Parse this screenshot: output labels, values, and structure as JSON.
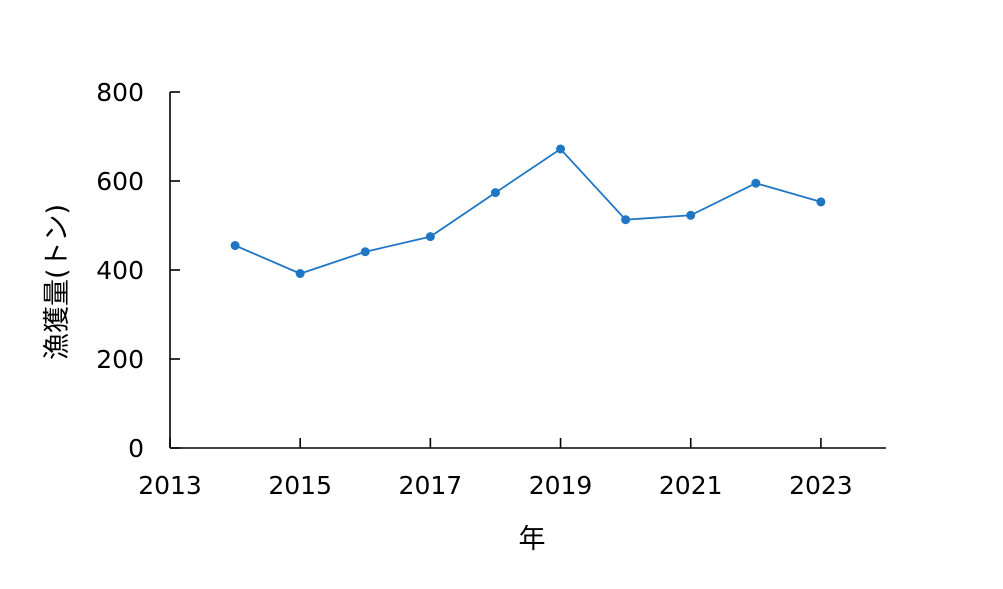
{
  "chart_data": {
    "type": "line",
    "title": "",
    "xlabel": "年",
    "ylabel": "漁獲量(トン)",
    "x": [
      2014,
      2015,
      2016,
      2017,
      2018,
      2019,
      2020,
      2021,
      2022,
      2023
    ],
    "xlim": [
      2013,
      2024
    ],
    "xticks": [
      2013,
      2015,
      2017,
      2019,
      2021,
      2023
    ],
    "ylim": [
      0,
      800
    ],
    "yticks": [
      0,
      200,
      400,
      600,
      800
    ],
    "grid": false,
    "legend": "none",
    "series": [
      {
        "color": "#1f77c4",
        "values": [
          455,
          392,
          441,
          475,
          574,
          672,
          513,
          523,
          595,
          553
        ]
      }
    ]
  }
}
